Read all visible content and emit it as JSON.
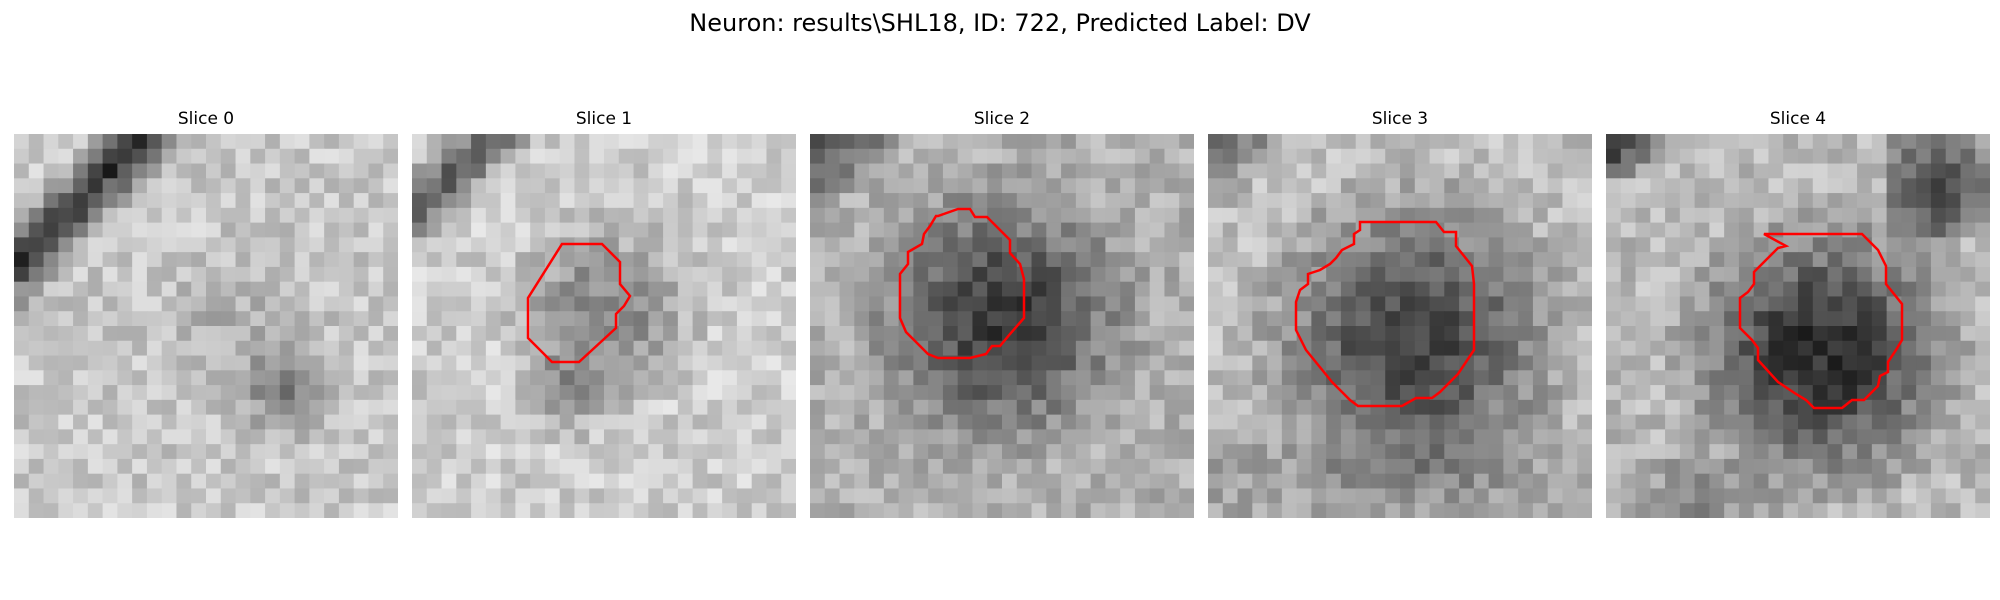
{
  "figure": {
    "title": "Neuron: results\\SHL18, ID: 722, Predicted Label: DV"
  },
  "slices": [
    {
      "label": "Slice 0",
      "has_contour": false
    },
    {
      "label": "Slice 1",
      "has_contour": true
    },
    {
      "label": "Slice 2",
      "has_contour": true
    },
    {
      "label": "Slice 3",
      "has_contour": true
    },
    {
      "label": "Slice 4",
      "has_contour": true
    }
  ],
  "colors": {
    "contour": "#ff0000",
    "background": "#ffffff"
  },
  "colormap": "grayscale"
}
